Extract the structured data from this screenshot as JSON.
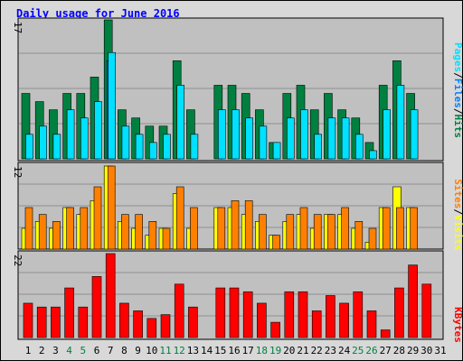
{
  "title": "Daily usage for June 2016",
  "labels": {
    "hits": "Hits",
    "files": "Files",
    "pages": "Pages",
    "visits": "Visits",
    "sites": "Sites",
    "kbytes": "KBytes",
    "sep": "/"
  },
  "colors": {
    "hits": "#008040",
    "files": "#0080ff",
    "pages": "#00e0ff",
    "visits": "#ffff00",
    "sites": "#ff8000",
    "kbytes": "#ff0000",
    "title": "#0000ff",
    "panel": "#c0c0c0",
    "outer": "#d8d8d8",
    "weekend": "#008040"
  },
  "chart_data": [
    {
      "type": "bar",
      "title": "Daily usage for June 2016",
      "ylim": [
        0,
        17
      ],
      "ytick_label": "17",
      "categories": [
        "1",
        "2",
        "3",
        "4",
        "5",
        "6",
        "7",
        "8",
        "9",
        "10",
        "11",
        "12",
        "13",
        "14",
        "15",
        "16",
        "17",
        "18",
        "19",
        "20",
        "21",
        "22",
        "23",
        "24",
        "25",
        "26",
        "27",
        "28",
        "29",
        "30",
        "31"
      ],
      "weekend_days": [
        "4",
        "5",
        "11",
        "12",
        "18",
        "19",
        "25",
        "26"
      ],
      "series": [
        {
          "name": "Hits",
          "values": [
            8,
            7,
            6,
            8,
            8,
            10,
            17,
            6,
            5,
            4,
            4,
            12,
            6,
            0,
            9,
            9,
            8,
            6,
            2,
            8,
            9,
            6,
            8,
            6,
            5,
            2,
            9,
            12,
            8,
            0,
            0
          ]
        },
        {
          "name": "Files",
          "values": [
            0,
            0,
            0,
            0,
            0,
            0,
            12,
            0,
            0,
            0,
            0,
            0,
            0,
            0,
            0,
            0,
            0,
            0,
            0,
            0,
            0,
            0,
            0,
            0,
            0,
            0,
            0,
            0,
            0,
            0,
            0
          ]
        },
        {
          "name": "Pages",
          "values": [
            3,
            4,
            3,
            6,
            5,
            7,
            13,
            4,
            3,
            2,
            3,
            9,
            3,
            0,
            6,
            6,
            5,
            4,
            2,
            5,
            6,
            3,
            5,
            5,
            3,
            1,
            6,
            9,
            6,
            0,
            0
          ]
        }
      ]
    },
    {
      "type": "bar",
      "ylim": [
        0,
        12
      ],
      "ytick_label": "12",
      "categories": [
        "1",
        "2",
        "3",
        "4",
        "5",
        "6",
        "7",
        "8",
        "9",
        "10",
        "11",
        "12",
        "13",
        "14",
        "15",
        "16",
        "17",
        "18",
        "19",
        "20",
        "21",
        "22",
        "23",
        "24",
        "25",
        "26",
        "27",
        "28",
        "29",
        "30",
        "31"
      ],
      "series": [
        {
          "name": "Visits",
          "values": [
            3,
            4,
            3,
            6,
            5,
            7,
            12,
            4,
            3,
            2,
            3,
            8,
            3,
            0,
            6,
            6,
            5,
            4,
            2,
            4,
            5,
            3,
            5,
            5,
            3,
            1,
            6,
            9,
            6,
            0,
            0
          ]
        },
        {
          "name": "Sites",
          "values": [
            6,
            5,
            4,
            6,
            6,
            9,
            12,
            5,
            5,
            4,
            3,
            9,
            6,
            0,
            6,
            7,
            7,
            5,
            2,
            5,
            6,
            5,
            5,
            6,
            4,
            3,
            6,
            6,
            6,
            0,
            0
          ]
        }
      ]
    },
    {
      "type": "bar",
      "ylim": [
        0,
        22
      ],
      "ytick_label": "22",
      "categories": [
        "1",
        "2",
        "3",
        "4",
        "5",
        "6",
        "7",
        "8",
        "9",
        "10",
        "11",
        "12",
        "13",
        "14",
        "15",
        "16",
        "17",
        "18",
        "19",
        "20",
        "21",
        "22",
        "23",
        "24",
        "25",
        "26",
        "27",
        "28",
        "29",
        "30",
        "31"
      ],
      "series": [
        {
          "name": "KBytes",
          "values": [
            9,
            8,
            8,
            13,
            8,
            16,
            22,
            9,
            7,
            5,
            6,
            14,
            8,
            0,
            13,
            13,
            12,
            9,
            4,
            12,
            12,
            7,
            11,
            9,
            12,
            7,
            2,
            13,
            19,
            14,
            0
          ]
        }
      ]
    }
  ]
}
